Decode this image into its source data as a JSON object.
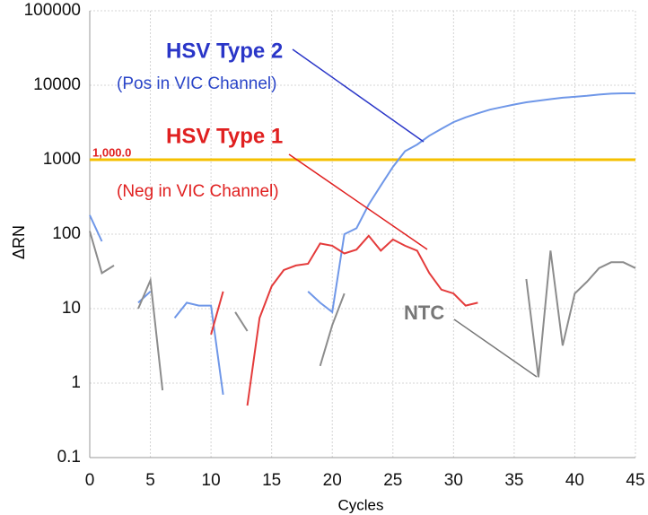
{
  "chart_data": {
    "type": "line",
    "x_label": "Cycles",
    "y_label": "ΔRN",
    "x": [
      0,
      1,
      2,
      3,
      4,
      5,
      6,
      7,
      8,
      9,
      10,
      11,
      12,
      13,
      14,
      15,
      16,
      17,
      18,
      19,
      20,
      21,
      22,
      23,
      24,
      25,
      26,
      27,
      28,
      29,
      30,
      31,
      32,
      33,
      34,
      35,
      36,
      37,
      38,
      39,
      40,
      41,
      42,
      43,
      44,
      45
    ],
    "xlim": [
      0,
      45
    ],
    "xticks": [
      0,
      5,
      10,
      15,
      20,
      25,
      30,
      35,
      40,
      45
    ],
    "ylim": [
      0.1,
      100000
    ],
    "yticks": [
      0.1,
      1,
      10,
      100,
      1000,
      10000,
      100000
    ],
    "log_scale_y": true,
    "grid": true,
    "threshold": {
      "value": 1000,
      "label": "1,000.0",
      "color": "#f5c000"
    },
    "series": [
      {
        "name": "HSV Type 2",
        "color": "#6f97e8",
        "values": [
          180,
          80,
          null,
          null,
          12,
          17,
          null,
          7.5,
          12,
          11,
          11,
          0.7,
          null,
          null,
          null,
          null,
          null,
          null,
          17,
          12,
          9,
          100,
          120,
          250,
          450,
          800,
          1300,
          1600,
          2100,
          2600,
          3200,
          3700,
          4200,
          4700,
          5100,
          5500,
          5900,
          6200,
          6500,
          6800,
          7000,
          7200,
          7500,
          7700,
          7800,
          7800
        ]
      },
      {
        "name": "HSV Type 1",
        "color": "#e43b3b",
        "values": [
          null,
          null,
          null,
          null,
          null,
          null,
          null,
          null,
          null,
          null,
          4.5,
          17,
          null,
          0.5,
          7.5,
          20,
          33,
          38,
          40,
          75,
          70,
          55,
          62,
          95,
          60,
          85,
          70,
          60,
          30,
          18,
          16,
          11,
          12,
          null,
          null,
          null,
          null,
          null,
          null,
          null,
          null,
          null,
          null,
          null,
          null,
          null
        ]
      },
      {
        "name": "NTC",
        "color": "#8c8c8c",
        "values": [
          110,
          30,
          38,
          null,
          10,
          24,
          0.8,
          null,
          null,
          null,
          null,
          null,
          9,
          5,
          null,
          null,
          null,
          null,
          null,
          1.7,
          6,
          16,
          null,
          null,
          null,
          null,
          null,
          null,
          null,
          null,
          null,
          null,
          null,
          null,
          null,
          null,
          25,
          1.2,
          60,
          3.2,
          16,
          23,
          35,
          42,
          42,
          35
        ]
      }
    ],
    "annotations": [
      {
        "text": "HSV Type 2",
        "color": "#2a36c8"
      },
      {
        "text": "(Pos in VIC Channel)",
        "color": "#2a45c8"
      },
      {
        "text": "HSV Type 1",
        "color": "#e02020"
      },
      {
        "text": "(Neg in VIC Channel)",
        "color": "#e02020"
      },
      {
        "text": "NTC",
        "color": "#777777"
      }
    ]
  }
}
